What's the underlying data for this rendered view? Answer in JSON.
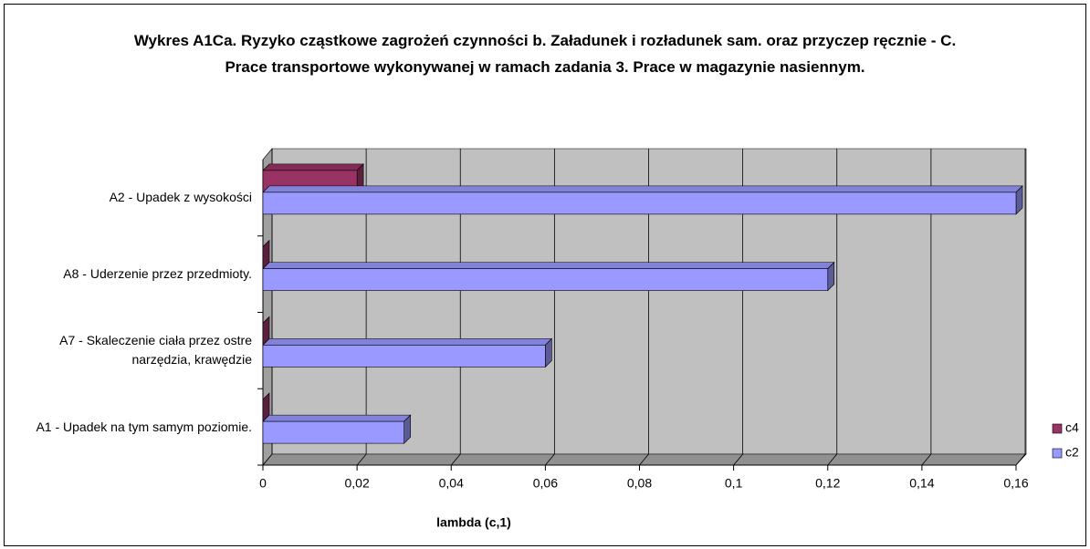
{
  "chart_data": {
    "type": "bar",
    "orientation": "horizontal",
    "title": "Wykres A1Ca. Ryzyko cząstkowe zagrożeń czynności b. Załadunek i rozładunek sam. oraz przyczep ręcznie - C. Prace transportowe wykonywanej w ramach zadania 3. Prace w magazynie nasiennym.",
    "x_label": "lambda (c,1)",
    "categories": [
      "A1 - Upadek na tym samym poziomie.",
      "A7 - Skaleczenie ciała przez ostre narzędzia, krawędzie",
      "A8  - Uderzenie przez przedmioty.",
      "A2 - Upadek z wysokości"
    ],
    "series": [
      {
        "name": "c4",
        "color": "#993366",
        "values": [
          0,
          0,
          0,
          0.02
        ]
      },
      {
        "name": "c2",
        "color": "#9999ff",
        "values": [
          0.03,
          0.06,
          0.12,
          0.16
        ]
      }
    ],
    "xlim": [
      0,
      0.16
    ],
    "xticks": [
      0,
      {
        "value": 0.02,
        "label": "0,02"
      },
      {
        "value": 0.04,
        "label": "0,04"
      },
      {
        "value": 0.06,
        "label": "0,06"
      },
      {
        "value": 0.08,
        "label": "0,08"
      },
      {
        "value": 0.1,
        "label": "0,1"
      },
      {
        "value": 0.12,
        "label": "0,12"
      },
      {
        "value": 0.14,
        "label": "0,14"
      },
      {
        "value": 0.16,
        "label": "0,16"
      }
    ],
    "grid": true,
    "legend": "right"
  }
}
